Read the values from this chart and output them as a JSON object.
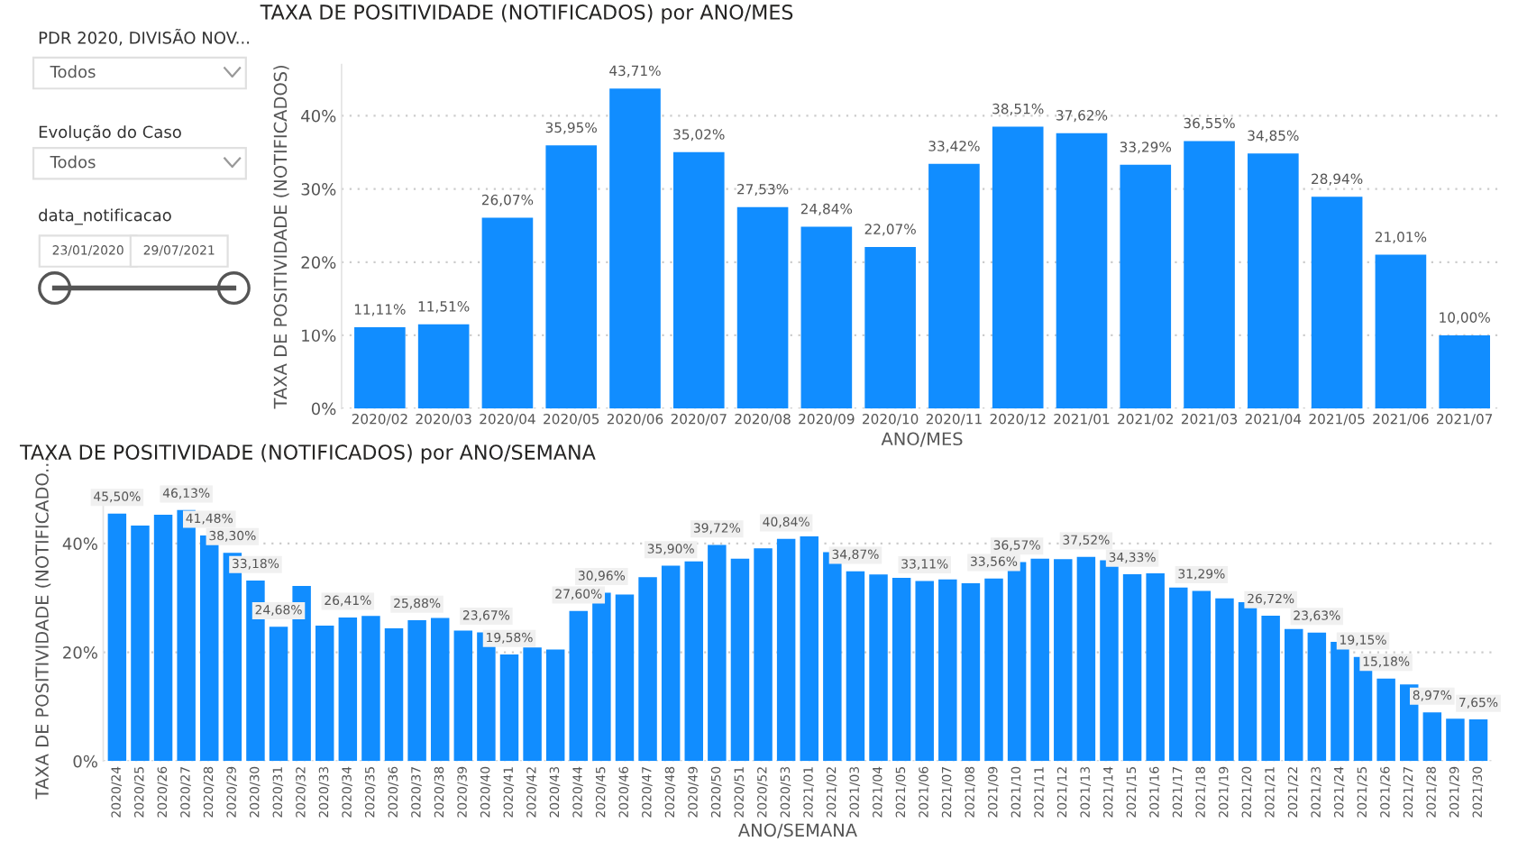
{
  "chart_data": [
    {
      "type": "other",
      "annotations": [
        "PDR 2020, DIVISÃO NOV...",
        "Todos",
        "Evolução do Caso",
        "Todos",
        "data_notificacao",
        "23/01/2020",
        "29/07/2021"
      ]
    },
    {
      "type": "bar",
      "title": "TAXA DE POSITIVIDADE (NOTIFICADOS) por ANO/MES",
      "xlabel": "ANO/MES",
      "ylabel": "TAXA DE POSITIVIDADE (NOTIFICADOS)",
      "categories": [
        "2020/02",
        "2020/03",
        "2020/04",
        "2020/05",
        "2020/06",
        "2020/07",
        "2020/08",
        "2020/09",
        "2020/10",
        "2020/11",
        "2020/12",
        "2021/01",
        "2021/02",
        "2021/03",
        "2021/04",
        "2021/05",
        "2021/06",
        "2021/07"
      ],
      "values": [
        11.11,
        11.51,
        26.07,
        35.95,
        43.71,
        35.02,
        27.53,
        24.84,
        22.07,
        33.42,
        38.51,
        37.62,
        33.29,
        36.55,
        34.85,
        28.94,
        21.01,
        10.0
      ],
      "value_labels": [
        "11,11%",
        "11,51%",
        "26,07%",
        "35,95%",
        "43,71%",
        "35,02%",
        "27,53%",
        "24,84%",
        "22,07%",
        "33,42%",
        "38,51%",
        "37,62%",
        "33,29%",
        "36,55%",
        "34,85%",
        "28,94%",
        "21,01%",
        "10,00%"
      ],
      "color": "#118dff",
      "ylim": [
        0,
        47
      ],
      "yticks": [
        {
          "value": 0,
          "label": "0%"
        },
        {
          "value": 10,
          "label": "10%"
        },
        {
          "value": 20,
          "label": "20%"
        },
        {
          "value": 30,
          "label": "30%"
        },
        {
          "value": 40,
          "label": "40%"
        }
      ],
      "grid": "y"
    },
    {
      "type": "bar",
      "title": "TAXA DE POSITIVIDADE (NOTIFICADOS) por ANO/SEMANA",
      "xlabel": "ANO/SEMANA",
      "ylabel": "TAXA DE POSITIVIDADE (NOTIFICADO...",
      "categories": [
        "2020/24",
        "2020/25",
        "2020/26",
        "2020/27",
        "2020/28",
        "2020/29",
        "2020/30",
        "2020/31",
        "2020/32",
        "2020/33",
        "2020/34",
        "2020/35",
        "2020/36",
        "2020/37",
        "2020/38",
        "2020/39",
        "2020/40",
        "2020/41",
        "2020/42",
        "2020/43",
        "2020/44",
        "2020/45",
        "2020/46",
        "2020/47",
        "2020/48",
        "2020/49",
        "2020/50",
        "2020/51",
        "2020/52",
        "2020/53",
        "2021/01",
        "2021/02",
        "2021/03",
        "2021/04",
        "2021/05",
        "2021/06",
        "2021/07",
        "2021/08",
        "2021/09",
        "2021/10",
        "2021/11",
        "2021/12",
        "2021/13",
        "2021/14",
        "2021/15",
        "2021/16",
        "2021/17",
        "2021/18",
        "2021/19",
        "2021/20",
        "2021/21",
        "2021/22",
        "2021/23",
        "2021/24",
        "2021/25",
        "2021/26",
        "2021/27",
        "2021/28",
        "2021/29",
        "2021/30"
      ],
      "values": [
        45.5,
        43.3,
        45.3,
        46.13,
        41.48,
        38.3,
        33.18,
        24.68,
        32.2,
        24.9,
        26.41,
        26.7,
        24.4,
        25.88,
        26.3,
        24.0,
        23.67,
        19.58,
        20.9,
        20.5,
        27.6,
        30.96,
        30.6,
        33.8,
        35.9,
        36.7,
        39.72,
        37.2,
        39.1,
        40.84,
        41.3,
        38.4,
        34.87,
        34.3,
        33.7,
        33.11,
        33.4,
        32.7,
        33.56,
        36.57,
        37.2,
        37.1,
        37.52,
        36.9,
        34.33,
        34.5,
        31.9,
        31.29,
        29.9,
        29.2,
        26.72,
        24.3,
        23.63,
        21.9,
        19.15,
        15.18,
        14.1,
        8.97,
        7.8,
        7.65
      ],
      "value_labels": [
        "45,50%",
        null,
        null,
        "46,13%",
        "41,48%",
        "38,30%",
        "33,18%",
        "24,68%",
        null,
        null,
        "26,41%",
        null,
        null,
        "25,88%",
        null,
        null,
        "23,67%",
        "19,58%",
        null,
        null,
        "27,60%",
        "30,96%",
        null,
        null,
        "35,90%",
        null,
        "39,72%",
        null,
        null,
        "40,84%",
        null,
        null,
        "34,87%",
        null,
        null,
        "33,11%",
        null,
        null,
        "33,56%",
        "36,57%",
        null,
        null,
        "37,52%",
        null,
        "34,33%",
        null,
        null,
        "31,29%",
        null,
        null,
        "26,72%",
        null,
        "23,63%",
        null,
        "19,15%",
        "15,18%",
        null,
        "8,97%",
        null,
        "7,65%"
      ],
      "color": "#118dff",
      "ylim": [
        0,
        49
      ],
      "yticks": [
        {
          "value": 0,
          "label": "0%"
        },
        {
          "value": 20,
          "label": "20%"
        },
        {
          "value": 40,
          "label": "40%"
        }
      ],
      "grid": "y"
    }
  ]
}
